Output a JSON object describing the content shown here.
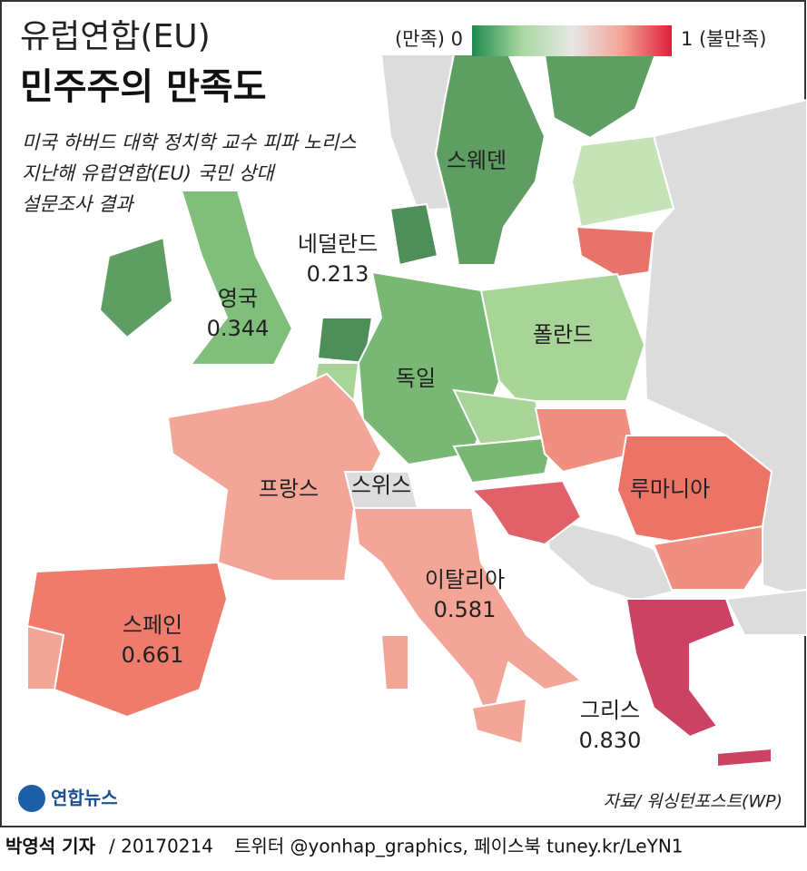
{
  "header": {
    "title_line1": "유럽연합(EU)",
    "title_line2": "민주주의 만족도",
    "subtitle": [
      "미국 하버드 대학 정치학 교수 피파 노리스",
      "지난해 유럽연합(EU) 국민 상대",
      "설문조사  결과"
    ]
  },
  "legend": {
    "low_label": "(만족) 0",
    "high_label": "1 (불만족)",
    "colors": [
      "#1e8a4e",
      "#a8d8a0",
      "#e6e6e6",
      "#f3a597",
      "#e01e3c"
    ]
  },
  "map": {
    "land_color": "#dcdcdc",
    "regions": [
      {
        "label": "스웨덴",
        "color": "#5e9e63"
      },
      {
        "color": "#5e9e63"
      },
      {
        "color": "#c6e3b8"
      },
      {
        "color": "#e8736a"
      },
      {
        "label": "네덜란드",
        "value": 0.213,
        "value_label": "0.213",
        "color": "#4e8e58"
      },
      {
        "label": "영국",
        "value": 0.344,
        "value_label": "0.344",
        "color": "#7fbf7b"
      },
      {
        "color": "#5e9e63"
      },
      {
        "color": "#4e8e58"
      },
      {
        "color": "#a8d498"
      },
      {
        "label": "독일",
        "color": "#79b775"
      },
      {
        "label": "폴란드",
        "color": "#a8d498"
      },
      {
        "color": "#a8d498"
      },
      {
        "color": "#79b775"
      },
      {
        "label": "프랑스",
        "color": "#f3a597"
      },
      {
        "label": "스위스",
        "color": "#dcdcdc"
      },
      {
        "label": "스페인",
        "value": 0.661,
        "value_label": "0.661",
        "color": "#ef7b6d"
      },
      {
        "color": "#f3a597"
      },
      {
        "label": "이탈리아",
        "value": 0.581,
        "value_label": "0.581",
        "color": "#f3a597"
      },
      {
        "color": "#f3a597"
      },
      {
        "color": "#f3a597"
      },
      {
        "color": "#f08f80"
      },
      {
        "label": "루마니아",
        "color": "#eb7466"
      },
      {
        "color": "#f08f80"
      },
      {
        "color": "#e0616a"
      },
      {
        "label": "그리스",
        "value": 0.83,
        "value_label": "0.830",
        "color": "#cc4263"
      },
      {
        "color": "#cc4263"
      }
    ]
  },
  "source": "자료/ 워싱턴포스트(WP)",
  "logo": "연합뉴스",
  "footer": {
    "author": "박영석 기자",
    "date": "/ 20170214",
    "sns": "트위터 @yonhap_graphics, 페이스북 tuney.kr/LeYN1"
  }
}
